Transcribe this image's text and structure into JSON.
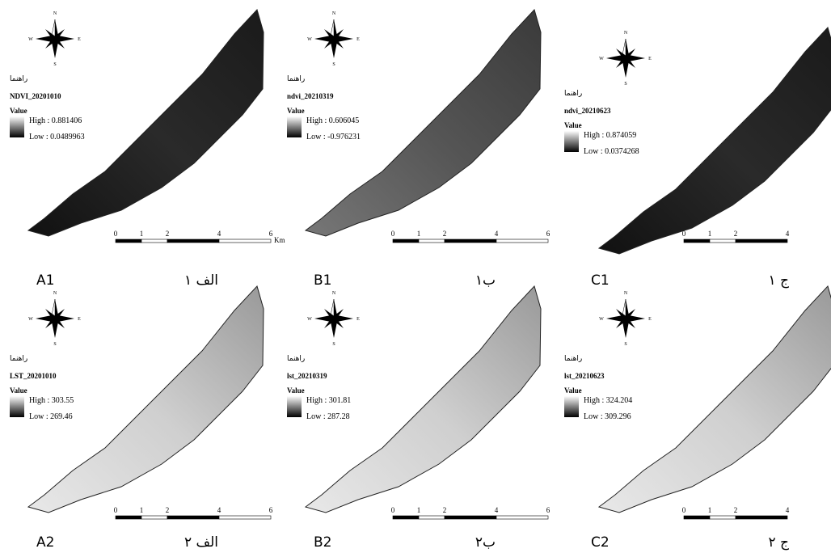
{
  "legend_title": "راهنما",
  "value_label": "Value",
  "compass": {
    "n": "N",
    "e": "E",
    "s": "S",
    "w": "W"
  },
  "panels": [
    {
      "label": "A1",
      "label_fa": "الف ۱",
      "layer": "NDVI_20201010",
      "high": "High : 0.881406",
      "low": "Low : 0.0489963",
      "scale": [
        0,
        1,
        2,
        4,
        6
      ],
      "unit": "Km"
    },
    {
      "label": "B1",
      "label_fa": "ب۱",
      "layer": "ndvi_20210319",
      "high": "High : 0.606045",
      "low": "Low : -0.976231",
      "scale": [
        0,
        1,
        2,
        4,
        6
      ]
    },
    {
      "label": "C1",
      "label_fa": "ج ۱",
      "layer": "ndvi_20210623",
      "high": "High : 0.874059",
      "low": "Low : 0.0374268",
      "scale": [
        0,
        1,
        2,
        4
      ]
    },
    {
      "label": "A2",
      "label_fa": "الف ۲",
      "layer": "LST_20201010",
      "high": "High : 303.55",
      "low": "Low : 269.46",
      "scale": [
        0,
        1,
        2,
        4,
        6
      ]
    },
    {
      "label": "B2",
      "label_fa": "ب۲",
      "layer": "lst_20210319",
      "high": "High : 301.81",
      "low": "Low : 287.28",
      "scale": [
        0,
        1,
        2,
        4,
        6
      ]
    },
    {
      "label": "C2",
      "label_fa": "ج ۲",
      "layer": "lst_20210623",
      "high": "High : 324.204",
      "low": "Low : 309.296",
      "scale": [
        0,
        1,
        2,
        4
      ]
    }
  ]
}
